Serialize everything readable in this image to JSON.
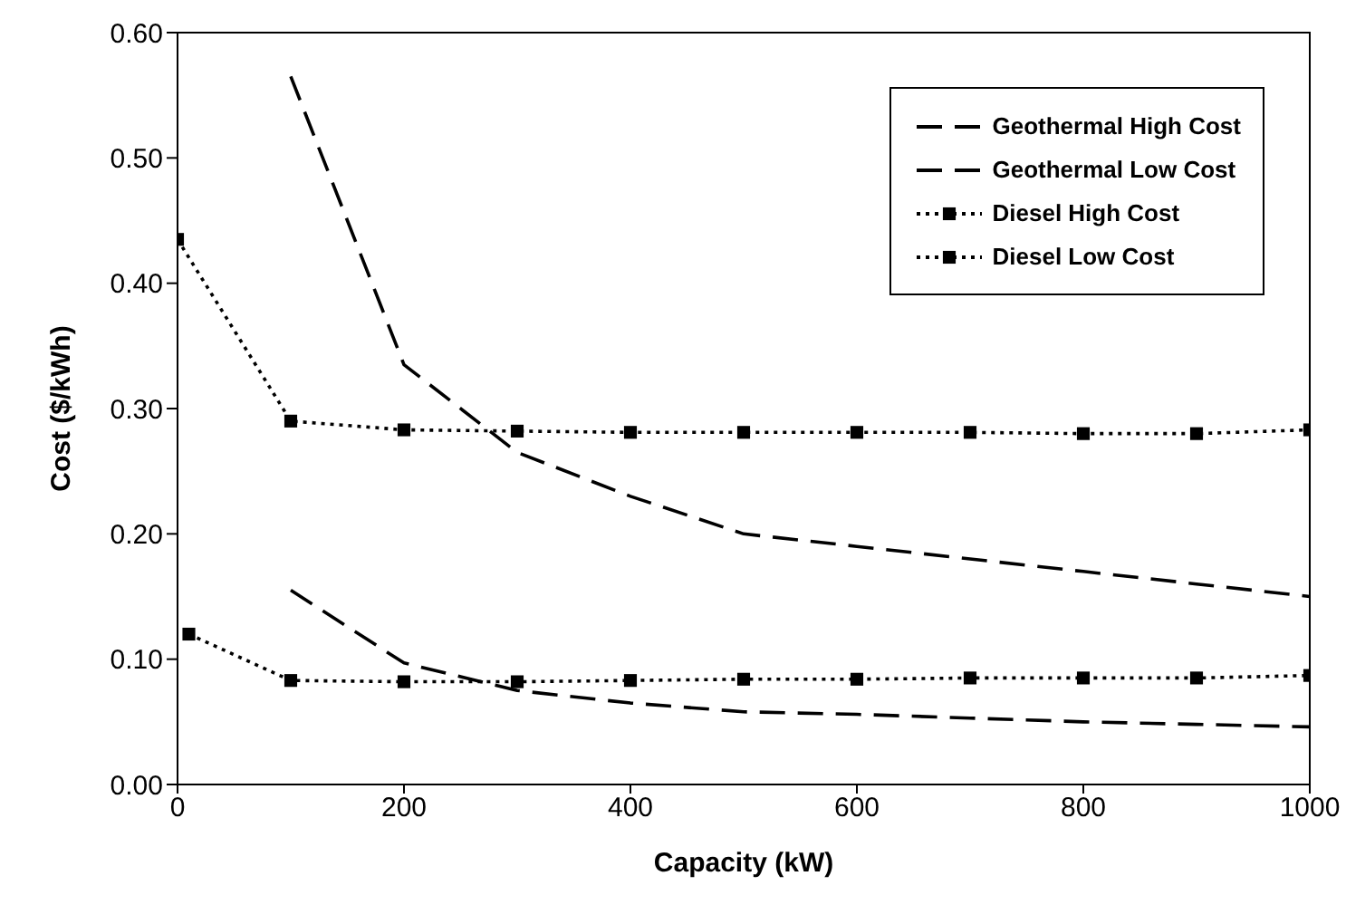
{
  "chart_data": {
    "type": "line",
    "xlabel": "Capacity (kW)",
    "ylabel": "Cost ($/kWh)",
    "xlim": [
      0,
      1000
    ],
    "xticks": [
      0,
      200,
      400,
      600,
      800,
      1000
    ],
    "ylim": [
      0,
      0.6
    ],
    "yticks": [
      {
        "value": 0,
        "label": "0.00"
      },
      {
        "value": 0.1,
        "label": "0.10"
      },
      {
        "value": 0.2,
        "label": "0.20"
      },
      {
        "value": 0.3,
        "label": "0.30"
      },
      {
        "value": 0.4,
        "label": "0.40"
      },
      {
        "value": 0.5,
        "label": "0.50"
      },
      {
        "value": 0.6,
        "label": "0.60"
      }
    ],
    "grid": false,
    "legend": "top right",
    "series": [
      {
        "name": "Geothermal High Cost",
        "color": "#000000",
        "line_style": "dashed",
        "marker": "none",
        "x": [
          100,
          200,
          300,
          400,
          500,
          600,
          700,
          800,
          900,
          1000
        ],
        "values": [
          0.565,
          0.335,
          0.265,
          0.23,
          0.2,
          0.19,
          0.18,
          0.17,
          0.16,
          0.15
        ]
      },
      {
        "name": "Geothermal Low Cost",
        "color": "#000000",
        "line_style": "dashed",
        "marker": "none",
        "x": [
          100,
          200,
          300,
          400,
          500,
          600,
          700,
          800,
          900,
          1000
        ],
        "values": [
          0.155,
          0.097,
          0.075,
          0.065,
          0.058,
          0.056,
          0.053,
          0.05,
          0.048,
          0.046
        ]
      },
      {
        "name": "Diesel High Cost",
        "color": "#000000",
        "line_style": "dotted",
        "marker": "square",
        "x": [
          0,
          100,
          200,
          300,
          400,
          500,
          600,
          700,
          800,
          900,
          1000
        ],
        "values": [
          0.435,
          0.29,
          0.283,
          0.282,
          0.281,
          0.281,
          0.281,
          0.281,
          0.28,
          0.28,
          0.283
        ]
      },
      {
        "name": "Diesel Low Cost",
        "color": "#000000",
        "line_style": "dotted",
        "marker": "square",
        "x": [
          10,
          100,
          200,
          300,
          400,
          500,
          600,
          700,
          800,
          900,
          1000
        ],
        "values": [
          0.12,
          0.083,
          0.082,
          0.082,
          0.083,
          0.084,
          0.084,
          0.085,
          0.085,
          0.085,
          0.087
        ]
      }
    ]
  }
}
